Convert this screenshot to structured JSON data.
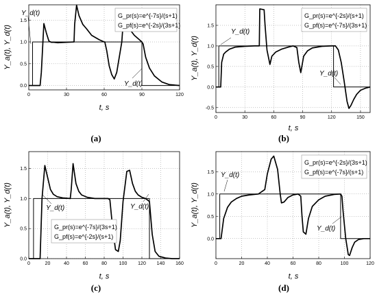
{
  "chart_data": [
    {
      "type": "line",
      "panel_label": "(a)",
      "ylabel": "Y_a(t), Y_d(t)",
      "xlabel": "t, s",
      "xlim": [
        0,
        120
      ],
      "ylim": [
        -0.1,
        1.85
      ],
      "xticks": [
        0,
        30,
        60,
        90,
        120
      ],
      "yticks": [
        0.0,
        0.5,
        1.0,
        1.5
      ],
      "legend": [
        "G_pr(s)=e^{-7s}/(s+1)",
        "G_pf(s)=e^{-2s}/(3s+1)"
      ],
      "annotations": [
        "Y_d(t)",
        "Y_d(t)"
      ],
      "series": [
        {
          "role": "setpoint",
          "x": [
            0,
            3,
            3,
            90,
            90,
            120
          ],
          "y": [
            0,
            0,
            1,
            1,
            0,
            0
          ]
        },
        {
          "role": "response",
          "x": [
            0,
            9,
            10,
            12,
            14,
            16,
            18,
            20,
            23,
            30,
            36,
            36.5,
            38,
            40,
            43,
            46,
            50,
            56,
            60,
            60.5,
            62,
            64,
            66,
            68,
            70,
            72,
            74,
            75,
            76,
            78,
            80,
            84,
            88,
            90,
            91,
            93,
            96,
            100,
            106,
            112,
            120
          ],
          "y": [
            0,
            0,
            0.3,
            1.42,
            1.2,
            1.02,
            0.99,
            0.99,
            0.98,
            0.99,
            1.0,
            1.4,
            1.84,
            1.6,
            1.4,
            1.3,
            1.15,
            1.05,
            1.0,
            1.0,
            0.8,
            0.45,
            0.25,
            0.15,
            0.3,
            0.65,
            1.0,
            1.4,
            1.55,
            1.45,
            1.3,
            1.15,
            1.05,
            1.0,
            0.95,
            0.65,
            0.4,
            0.22,
            0.08,
            0.02,
            0.0
          ]
        }
      ]
    },
    {
      "type": "line",
      "panel_label": "(b)",
      "ylabel": "Y_a(t), Y_d(t)",
      "xlabel": "t, s",
      "xlim": [
        0,
        160
      ],
      "ylim": [
        -0.62,
        2.0
      ],
      "xticks": [
        0,
        30,
        60,
        90,
        120,
        150
      ],
      "yticks": [
        -0.5,
        0.0,
        0.5,
        1.0,
        1.5
      ],
      "legend": [
        "G_pr(s)=e^{-2s}/(s+1)",
        "G_pf(s)=e^{-7s}/(3s+1)"
      ],
      "annotations": [
        "Y_d(t)",
        "Y_d(t)"
      ],
      "series": [
        {
          "role": "setpoint",
          "x": [
            0,
            3,
            3,
            122,
            122,
            160
          ],
          "y": [
            0,
            0,
            1,
            1,
            0,
            0
          ]
        },
        {
          "role": "response",
          "x": [
            0,
            5,
            6,
            8,
            10,
            14,
            20,
            30,
            40,
            45,
            45.5,
            50,
            51,
            53,
            56,
            58,
            62,
            68,
            75,
            80,
            84,
            86,
            88,
            91,
            95,
            100,
            110,
            120,
            124,
            127,
            130,
            133,
            136,
            138,
            140,
            143,
            146,
            150,
            155,
            160
          ],
          "y": [
            0,
            0,
            0.6,
            0.8,
            0.85,
            0.92,
            0.97,
            0.99,
            1.0,
            1.0,
            1.9,
            1.88,
            1.5,
            0.9,
            0.55,
            0.75,
            0.85,
            0.92,
            0.97,
            1.0,
            0.96,
            0.6,
            0.35,
            0.75,
            0.88,
            0.95,
            0.99,
            1.0,
            1.0,
            0.9,
            0.6,
            0.15,
            -0.35,
            -0.52,
            -0.45,
            -0.3,
            -0.18,
            -0.08,
            -0.03,
            0.0
          ]
        }
      ]
    },
    {
      "type": "line",
      "panel_label": "(c)",
      "ylabel": "Y_a(t), Y_d(t)",
      "xlabel": "t, s",
      "xlim": [
        0,
        160
      ],
      "ylim": [
        0.0,
        1.78
      ],
      "xticks": [
        0,
        20,
        40,
        60,
        80,
        100,
        120,
        140,
        160
      ],
      "yticks": [
        0.0,
        0.5,
        1.0,
        1.5
      ],
      "legend": [
        "G_pr(s)=e^{-7s}/(3s+1)",
        "G_pf(s)=e^{-2s}/(s+1)"
      ],
      "annotations": [
        "Y_d(t)",
        "Y_d(t)"
      ],
      "series": [
        {
          "role": "setpoint",
          "x": [
            0,
            5,
            5,
            128,
            128,
            160
          ],
          "y": [
            0,
            0,
            1,
            1,
            0,
            0
          ]
        },
        {
          "role": "response",
          "x": [
            0,
            12,
            14,
            17,
            20,
            23,
            26,
            30,
            36,
            44,
            45,
            47,
            50,
            53,
            56,
            62,
            70,
            84,
            86,
            89,
            92,
            95,
            97,
            100,
            104,
            107,
            110,
            113,
            116,
            120,
            124,
            128,
            131,
            134,
            138,
            145,
            152,
            160
          ],
          "y": [
            0,
            0,
            1.0,
            1.55,
            1.35,
            1.15,
            1.07,
            1.03,
            1.01,
            1.0,
            1.15,
            1.58,
            1.25,
            1.12,
            1.06,
            1.02,
            1.0,
            1.0,
            0.98,
            0.5,
            0.15,
            0.12,
            0.3,
            0.95,
            1.45,
            1.47,
            1.25,
            1.12,
            1.06,
            1.02,
            1.0,
            0.95,
            0.4,
            0.12,
            0.04,
            0.01,
            0.0,
            0.0
          ]
        }
      ]
    },
    {
      "type": "line",
      "panel_label": "(d)",
      "ylabel": "Y_a(t), Y_d(t)",
      "xlabel": "t, s",
      "xlim": [
        0,
        120
      ],
      "ylim": [
        -0.45,
        1.95
      ],
      "xticks": [
        0,
        20,
        40,
        60,
        80,
        100,
        120
      ],
      "yticks": [
        0.0,
        0.5,
        1.0,
        1.5
      ],
      "legend": [
        "G_pr(s)=e^{-2s}/(3s+1)",
        "G_pf(s)=e^{-7s}/(s+1)"
      ],
      "annotations": [
        "Y_d(t)",
        "Y_d(t)"
      ],
      "series": [
        {
          "role": "setpoint",
          "x": [
            0,
            3,
            3,
            97,
            97,
            120
          ],
          "y": [
            0,
            0,
            1,
            1,
            0,
            0
          ]
        },
        {
          "role": "response",
          "x": [
            0,
            4,
            6,
            9,
            12,
            16,
            20,
            26,
            33,
            38,
            40,
            43,
            45,
            48,
            50,
            51,
            53,
            56,
            60,
            64,
            66,
            67,
            68,
            70,
            72,
            75,
            80,
            85,
            92,
            97,
            98,
            99,
            101,
            103,
            104,
            106,
            108,
            111,
            115,
            120
          ],
          "y": [
            0,
            0,
            0.45,
            0.7,
            0.82,
            0.9,
            0.95,
            0.98,
            1.0,
            1.1,
            1.45,
            1.78,
            1.85,
            1.55,
            1.0,
            0.8,
            0.82,
            0.92,
            0.98,
            1.0,
            0.95,
            0.5,
            0.15,
            0.1,
            0.45,
            0.72,
            0.87,
            0.95,
            0.99,
            1.0,
            0.95,
            0.6,
            0.0,
            -0.36,
            -0.38,
            -0.2,
            -0.08,
            -0.02,
            0.0,
            0.0
          ]
        }
      ]
    }
  ]
}
